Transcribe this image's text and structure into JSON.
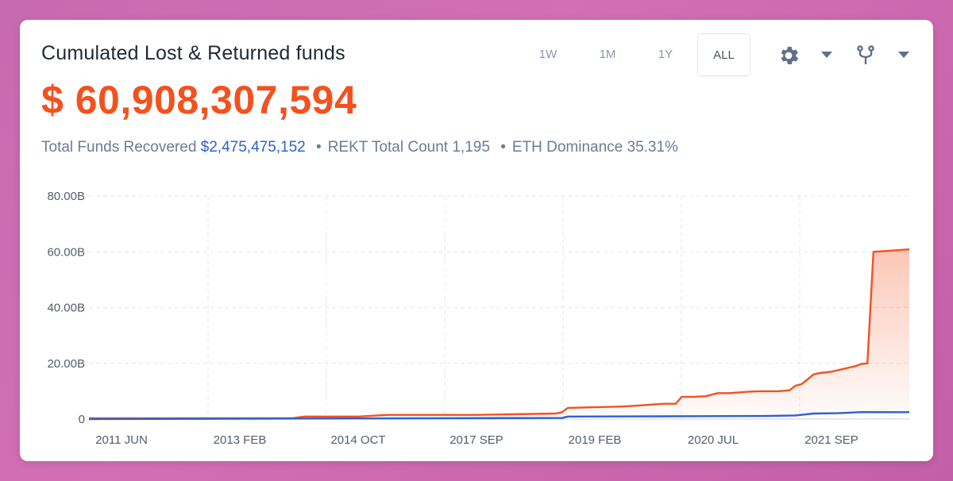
{
  "header": {
    "title": "Cumulated Lost & Returned funds",
    "total_value": "$ 60,908,307,594"
  },
  "stats": {
    "recovered_label": "Total Funds Recovered",
    "recovered_value": "$2,475,475,152",
    "sep1": "•",
    "rekt_label": "REKT Total Count 1,195",
    "sep2": "•",
    "eth_label": "ETH Dominance 35.31%"
  },
  "range_buttons": [
    {
      "label": "1W",
      "active": false
    },
    {
      "label": "1M",
      "active": false
    },
    {
      "label": "1Y",
      "active": false
    },
    {
      "label": "ALL",
      "active": true
    }
  ],
  "toolbar": {
    "settings_icon": "gear-icon",
    "settings_menu_icon": "caret-down-icon",
    "fork_icon": "fork-icon",
    "fork_menu_icon": "caret-down-icon"
  },
  "chart_data": {
    "type": "area",
    "x_ticks": [
      "2011 JUN",
      "2013 FEB",
      "2014 OCT",
      "2017 SEP",
      "2019 FEB",
      "2020 JUL",
      "2021 SEP"
    ],
    "y_ticks": [
      "80.00B",
      "60.00B",
      "40.00B",
      "20.00B",
      "0"
    ],
    "ylim": [
      0,
      80
    ],
    "grid": true,
    "colors": {
      "lost": "#f4511e",
      "returned": "#2f5fd0",
      "grid": "#e4e7eb"
    },
    "series": [
      {
        "x": [
          "2011-01",
          "2013-11",
          "2014-01",
          "2014-10",
          "2015-03",
          "2016-06",
          "2017-07",
          "2017-08",
          "2017-09",
          "2018-06",
          "2018-09",
          "2018-11",
          "2019-01",
          "2019-03",
          "2019-04",
          "2019-06",
          "2019-08",
          "2019-10",
          "2019-12",
          "2020-03",
          "2020-05",
          "2020-08",
          "2020-10",
          "2020-11",
          "2020-12",
          "2021-02",
          "2021-03",
          "2021-05",
          "2021-06",
          "2021-07",
          "2021-08",
          "2021-09",
          "2021-10",
          "2021-11",
          "2021-12",
          "2022-06"
        ],
        "values": [
          0.3,
          0.3,
          0.9,
          0.9,
          1.5,
          1.5,
          2.0,
          2.5,
          4.0,
          4.5,
          4.9,
          5.2,
          5.5,
          5.5,
          8.0,
          8.0,
          8.2,
          9.3,
          9.3,
          9.8,
          10.0,
          10.0,
          10.3,
          12.0,
          12.5,
          16.0,
          16.5,
          17.0,
          17.5,
          18.0,
          18.5,
          19.0,
          19.8,
          20.0,
          60.0,
          60.9
        ]
      },
      {
        "x": [
          "2011-01",
          "2014-01",
          "2017-08",
          "2017-09",
          "2019-01",
          "2020-06",
          "2020-11",
          "2021-02",
          "2021-06",
          "2021-08",
          "2021-10",
          "2022-06"
        ],
        "values": [
          0.0,
          0.2,
          0.4,
          0.9,
          1.0,
          1.1,
          1.3,
          2.0,
          2.1,
          2.3,
          2.5,
          2.48
        ]
      }
    ]
  }
}
